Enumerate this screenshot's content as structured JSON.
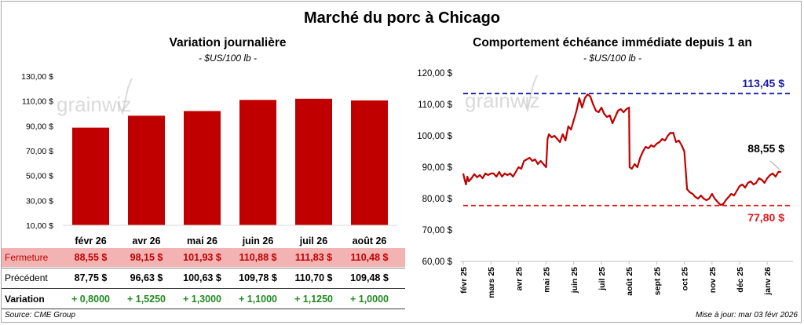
{
  "title": "Marché du porc à Chicago",
  "footer": {
    "source": "Source: CME Group",
    "updated": "Mise à jour: mar 03 févr 2026"
  },
  "watermark": "grainwiz",
  "chart_data": [
    {
      "type": "bar",
      "title": "Variation journalière",
      "subtitle": "- $US/100 lb -",
      "categories": [
        "févr 26",
        "avr 26",
        "mai 26",
        "juin 26",
        "juil 26",
        "août 26"
      ],
      "values": [
        88.55,
        98.15,
        101.93,
        110.88,
        111.83,
        110.48
      ],
      "ylim": [
        10,
        130
      ],
      "yticks": [
        "10,00 $",
        "30,00 $",
        "50,00 $",
        "70,00 $",
        "90,00 $",
        "110,00 $",
        "130,00 $"
      ],
      "bar_color": "#c00000",
      "table": {
        "rows": [
          {
            "label": "Fermeture",
            "cells": [
              "88,55  $",
              "98,15  $",
              "101,93  $",
              "110,88  $",
              "111,83  $",
              "110,48  $"
            ]
          },
          {
            "label": "Précédent",
            "cells": [
              "87,75  $",
              "96,63  $",
              "100,63  $",
              "109,78  $",
              "110,70  $",
              "109,48  $"
            ]
          },
          {
            "label": "Variation",
            "cells": [
              "+ 0,8000",
              "+ 1,5250",
              "+ 1,3000",
              "+ 1,1000",
              "+ 1,1250",
              "+ 1,0000"
            ]
          }
        ]
      }
    },
    {
      "type": "line",
      "title": "Comportement  échéance immédiate depuis 1 an",
      "subtitle": "- $US/100 lb -",
      "xticks": [
        "févr 25",
        "mars 25",
        "avr 25",
        "mai 25",
        "juin 25",
        "juil 25",
        "août 25",
        "sept 25",
        "oct 25",
        "nov 25",
        "déc 25",
        "janv 26"
      ],
      "ylim": [
        60,
        120
      ],
      "yticks": [
        "60,00 $",
        "70,00 $",
        "80,00 $",
        "90,00 $",
        "100,00 $",
        "110,00 $",
        "120,00 $"
      ],
      "line_color": "#c00000",
      "x_unit": "months since févr 25",
      "x": [
        0,
        0.05,
        0.1,
        0.15,
        0.2,
        0.3,
        0.4,
        0.5,
        0.6,
        0.7,
        0.8,
        0.9,
        1.0,
        1.1,
        1.2,
        1.3,
        1.4,
        1.5,
        1.6,
        1.7,
        1.8,
        1.9,
        2.0,
        2.1,
        2.2,
        2.3,
        2.4,
        2.5,
        2.6,
        2.7,
        2.8,
        2.9,
        3.0,
        3.05,
        3.1,
        3.2,
        3.3,
        3.4,
        3.5,
        3.6,
        3.7,
        3.8,
        3.9,
        4.0,
        4.1,
        4.2,
        4.3,
        4.4,
        4.5,
        4.6,
        4.7,
        4.8,
        4.9,
        5.0,
        5.1,
        5.2,
        5.3,
        5.4,
        5.5,
        5.6,
        5.7,
        5.8,
        5.9,
        6.0,
        6.02,
        6.1,
        6.2,
        6.3,
        6.4,
        6.5,
        6.6,
        6.7,
        6.8,
        6.9,
        7.0,
        7.1,
        7.2,
        7.3,
        7.4,
        7.5,
        7.55,
        7.6,
        7.7,
        7.8,
        7.9,
        8.0,
        8.1,
        8.2,
        8.3,
        8.4,
        8.5,
        8.6,
        8.7,
        8.8,
        8.9,
        9.0,
        9.1,
        9.2,
        9.3,
        9.4,
        9.5,
        9.6,
        9.7,
        9.8,
        9.9,
        10.0,
        10.1,
        10.2,
        10.3,
        10.4,
        10.5,
        10.6,
        10.7,
        10.8,
        10.9,
        11.0,
        11.1,
        11.2,
        11.3,
        11.4,
        11.5
      ],
      "y": [
        88.0,
        86.0,
        84.5,
        87.0,
        85.5,
        86.5,
        87.8,
        86.8,
        87.5,
        86.5,
        88.0,
        87.5,
        88.0,
        88.0,
        87.0,
        88.5,
        87.0,
        88.0,
        87.5,
        88.0,
        87.0,
        88.5,
        90.0,
        89.5,
        92.0,
        92.5,
        93.0,
        92.0,
        92.5,
        91.0,
        92.0,
        91.0,
        90.0,
        99.0,
        100.5,
        99.5,
        100.0,
        99.0,
        98.0,
        100.5,
        98.5,
        103.0,
        102.0,
        105.0,
        108.0,
        112.0,
        109.0,
        112.0,
        113.2,
        112.5,
        110.0,
        108.0,
        107.5,
        109.0,
        107.0,
        106.0,
        106.5,
        104.0,
        106.0,
        108.0,
        108.5,
        107.5,
        108.5,
        109.0,
        90.0,
        89.5,
        91.0,
        90.0,
        93.0,
        95.0,
        96.5,
        96.0,
        97.0,
        96.5,
        97.5,
        98.0,
        99.0,
        98.5,
        100.0,
        101.0,
        100.8,
        101.0,
        98.0,
        98.5,
        97.0,
        95.0,
        83.0,
        82.0,
        81.5,
        80.5,
        80.0,
        81.0,
        80.0,
        79.5,
        80.0,
        81.5,
        80.0,
        79.0,
        78.0,
        78.2,
        79.5,
        80.5,
        81.5,
        81.0,
        82.5,
        84.0,
        84.5,
        83.5,
        85.0,
        85.5,
        84.5,
        85.0,
        86.5,
        86.0,
        85.0,
        86.5,
        87.5,
        88.0,
        87.0,
        88.5,
        88.55
      ],
      "max_line": {
        "value": 113.45,
        "label": "113,45 $",
        "color": "#1a1aa8"
      },
      "min_line": {
        "value": 77.8,
        "label": "77,80 $",
        "color": "#e0191a"
      },
      "last_label": "88,55 $"
    }
  ]
}
